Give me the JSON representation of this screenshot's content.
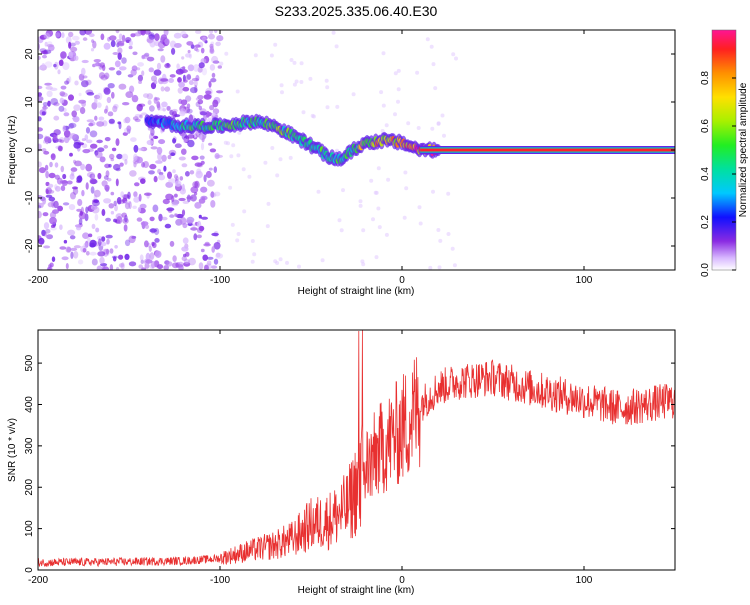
{
  "title": "S233.2025.335.06.40.E30",
  "colors": {
    "snr_line": "#e83030",
    "axis": "#000000"
  },
  "chart_data": [
    {
      "type": "heatmap",
      "xlabel": "Height of straight line (km)",
      "ylabel": "Frequency (Hz)",
      "xlim": [
        -200,
        150
      ],
      "ylim": [
        -25,
        25
      ],
      "xticks": [
        -200,
        -100,
        0,
        100
      ],
      "yticks": [
        -20,
        -10,
        0,
        10,
        20
      ],
      "colorbar": {
        "label": "Normalized spectral amplitude",
        "range": [
          0,
          1
        ],
        "ticks": [
          0.0,
          0.2,
          0.4,
          0.6,
          0.8
        ]
      },
      "ridge": {
        "description_points_x": [
          -140,
          -120,
          -100,
          -80,
          -70,
          -60,
          -50,
          -40,
          -35,
          -30,
          -25,
          -20,
          -10,
          0,
          10,
          20,
          150
        ],
        "description_points_y": [
          6,
          5,
          5,
          6,
          5,
          3,
          1,
          -1.5,
          -2,
          -1,
          0.5,
          1.5,
          2,
          1.5,
          0,
          0,
          0
        ],
        "strength": [
          0.2,
          0.45,
          0.5,
          0.45,
          0.55,
          0.5,
          0.5,
          0.45,
          0.5,
          0.5,
          0.55,
          0.7,
          0.75,
          0.75,
          0.9,
          0.95,
          0.95
        ]
      }
    },
    {
      "type": "line",
      "xlabel": "Height of straight line (km)",
      "ylabel": "SNR (10 * v/v)",
      "xlim": [
        -200,
        150
      ],
      "ylim": [
        0,
        580
      ],
      "xticks": [
        -200,
        -100,
        0,
        100
      ],
      "yticks": [
        0,
        100,
        200,
        300,
        400,
        500
      ],
      "series": [
        {
          "name": "SNR",
          "x_key": [
            -200,
            -150,
            -120,
            -100,
            -85,
            -70,
            -60,
            -50,
            -40,
            -30,
            -20,
            -10,
            0,
            10,
            20,
            30,
            50,
            70,
            100,
            120,
            150
          ],
          "y_key": [
            18,
            20,
            22,
            28,
            45,
            60,
            75,
            110,
            120,
            150,
            250,
            300,
            340,
            400,
            440,
            455,
            465,
            440,
            410,
            390,
            410
          ]
        }
      ]
    }
  ]
}
